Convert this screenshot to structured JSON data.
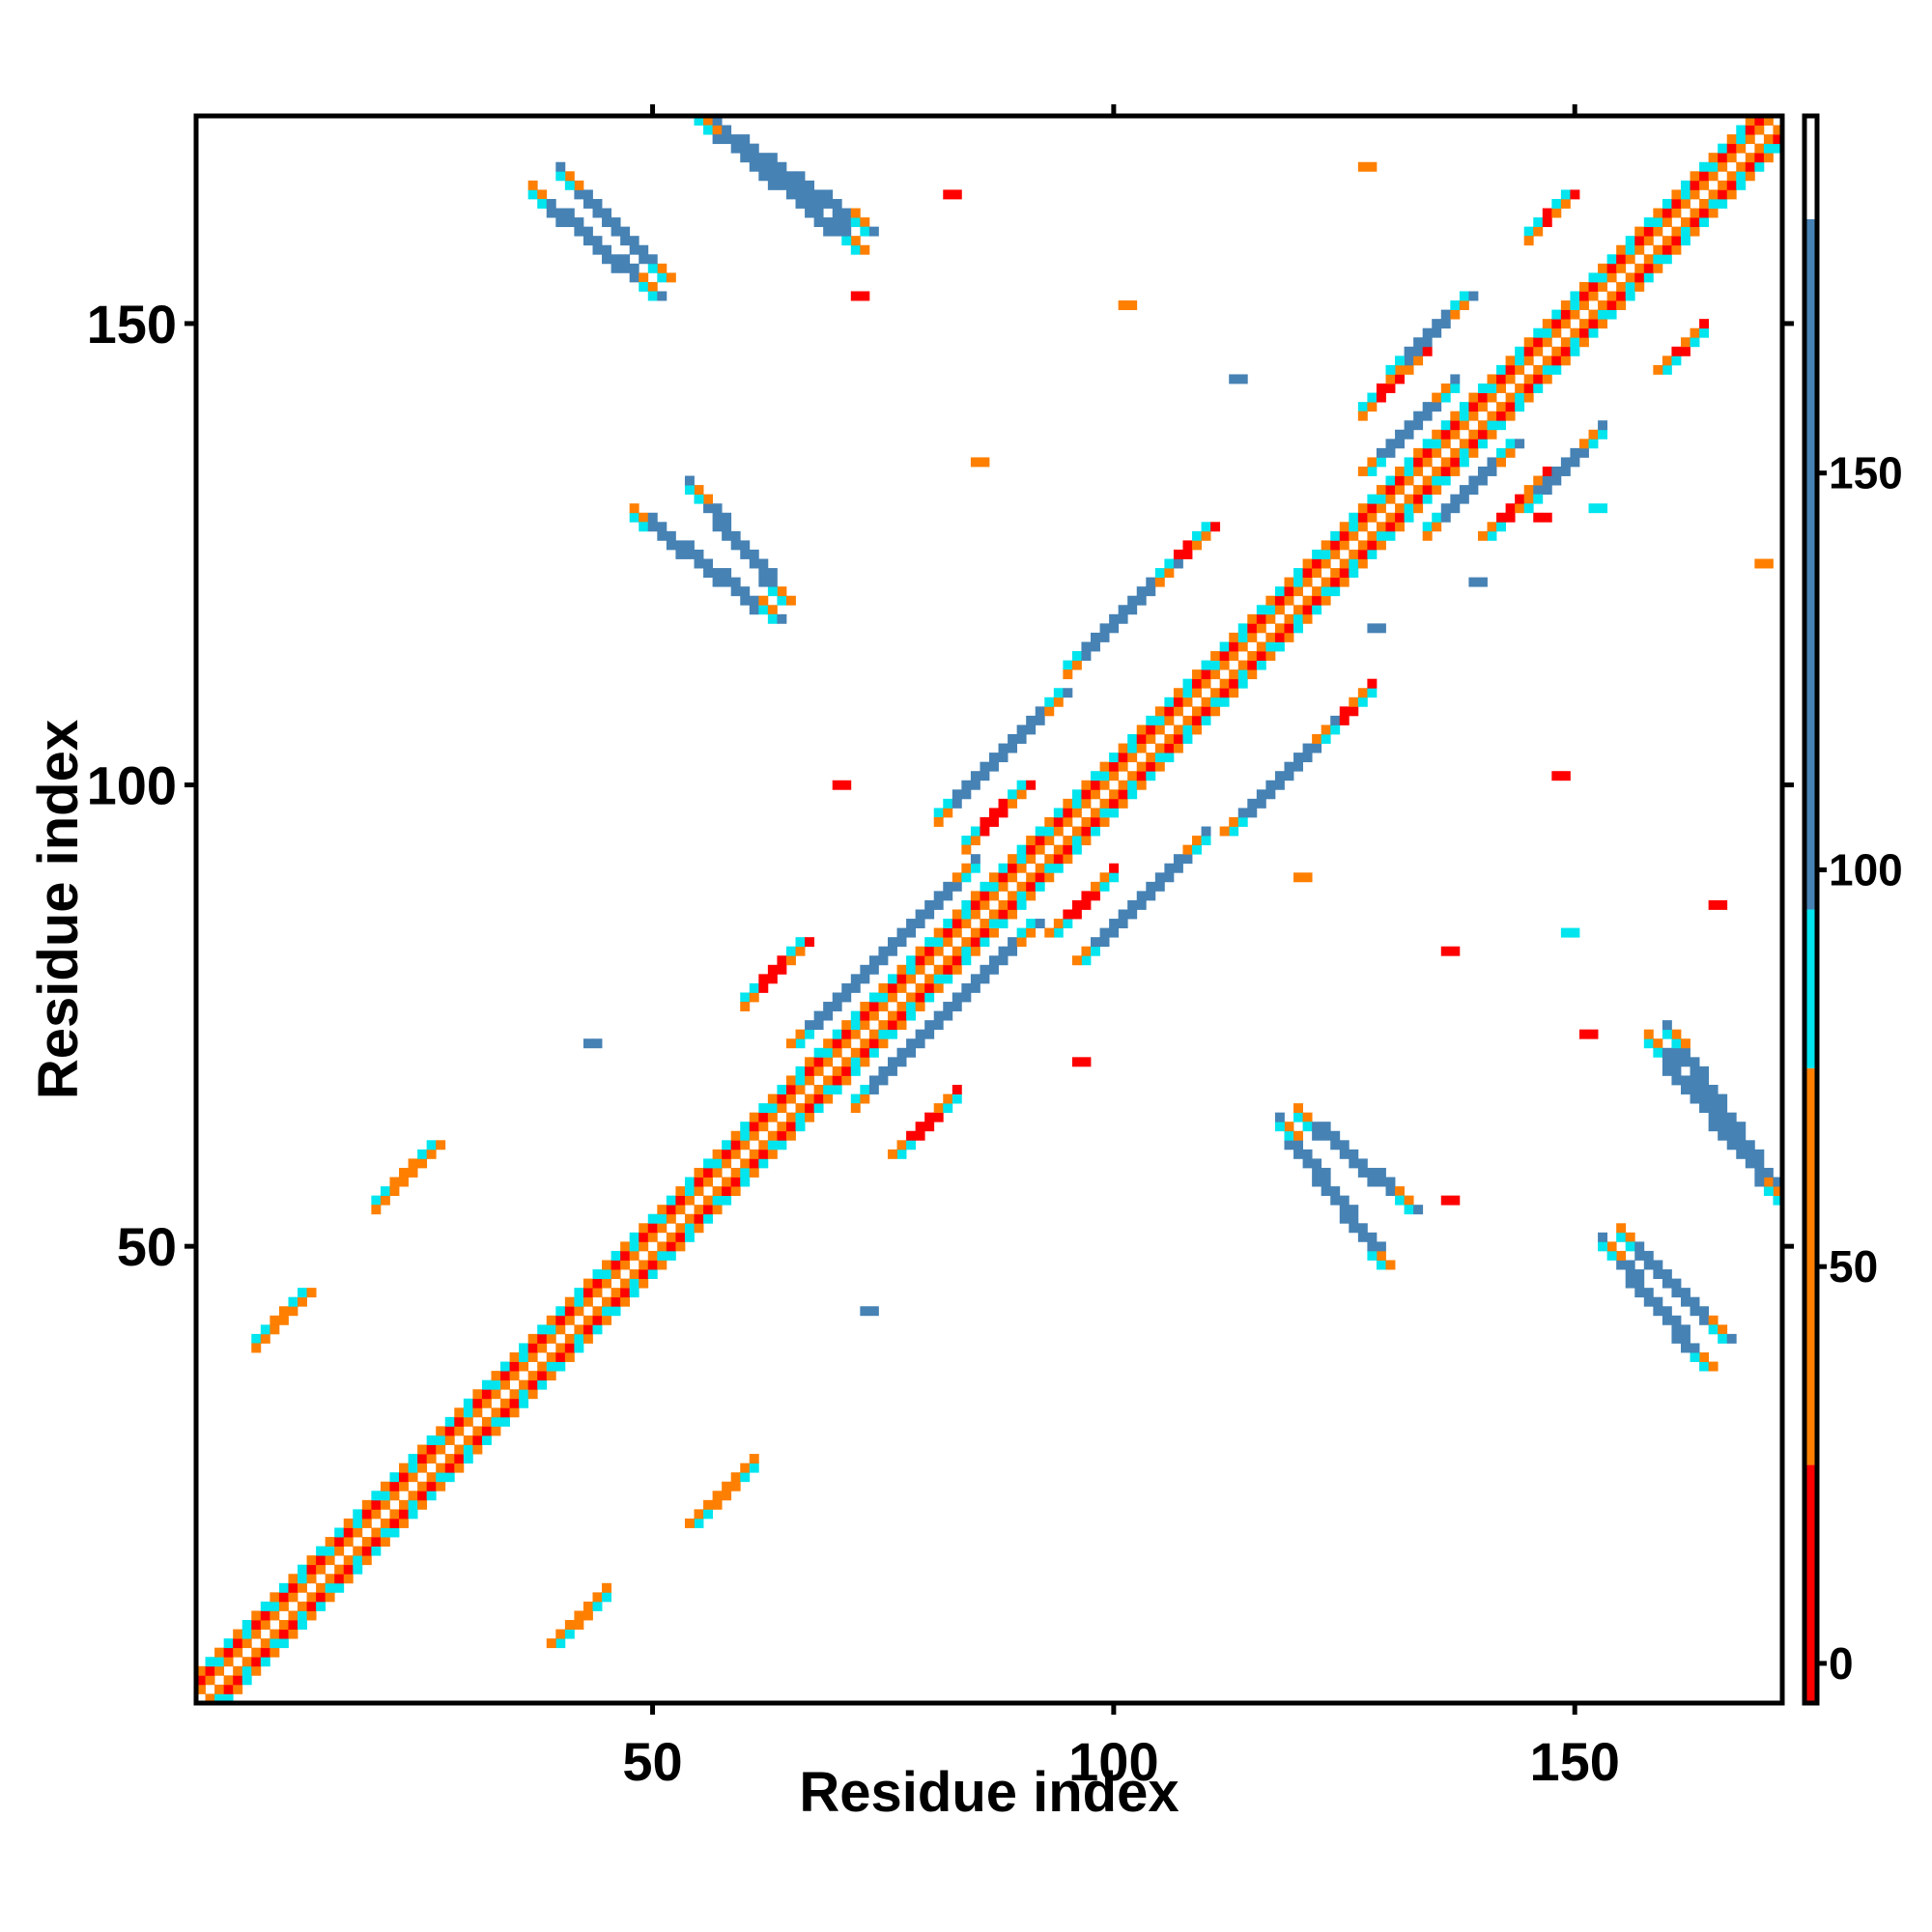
{
  "chart_data": {
    "type": "heatmap",
    "title": "",
    "xlabel": "Residue index",
    "ylabel": "Residue index",
    "xlim": [
      1,
      172
    ],
    "ylim": [
      1,
      172
    ],
    "x_ticks": [
      50,
      100,
      150
    ],
    "y_ticks": [
      50,
      100,
      150
    ],
    "x_tick_labels": [
      "50",
      "100",
      "150"
    ],
    "y_tick_labels": [
      "50",
      "100",
      "150"
    ],
    "grid": false,
    "colorbar": {
      "ticks": [
        0,
        50,
        100,
        150
      ],
      "tick_labels": [
        "0",
        "50",
        "100",
        "150"
      ],
      "range": [
        -5,
        195
      ],
      "bands": [
        {
          "from": -5,
          "to": 25,
          "color": "#ff0000"
        },
        {
          "from": 25,
          "to": 75,
          "color": "#ff7f00"
        },
        {
          "from": 75,
          "to": 95,
          "color": "#00e5ee"
        },
        {
          "from": 95,
          "to": 182,
          "color": "#4682b4"
        },
        {
          "from": 182,
          "to": 195,
          "color": "#ffffff"
        }
      ]
    },
    "features": [
      {
        "kind": "diagonal",
        "from": 1,
        "to": 172,
        "value": 40
      },
      {
        "kind": "band",
        "from": [
          7,
          12
        ],
        "to": [
          40,
          45
        ],
        "value": 40
      },
      {
        "kind": "band",
        "from": [
          20,
          26
        ],
        "to": [
          55,
          61
        ],
        "value": 40
      },
      {
        "kind": "band",
        "from": [
          60,
          66
        ],
        "to": [
          77,
          83
        ],
        "value": 15
      },
      {
        "kind": "band",
        "from": [
          84,
          90
        ],
        "to": [
          94,
          100
        ],
        "value": 15
      },
      {
        "kind": "band",
        "from": [
          104,
          110
        ],
        "to": [
          122,
          128
        ],
        "value": 15
      },
      {
        "kind": "band",
        "from": [
          127,
          133
        ],
        "to": [
          141,
          147
        ],
        "value": 15
      },
      {
        "kind": "band",
        "from": [
          145,
          149
        ],
        "to": [
          160,
          164
        ],
        "value": 15
      },
      {
        "kind": "band",
        "from": [
          72,
          91
        ],
        "to": [
          66,
          85
        ],
        "value": 120
      },
      {
        "kind": "band",
        "from": [
          81,
          94
        ],
        "to": [
          97,
          110
        ],
        "value": 120
      },
      {
        "kind": "band",
        "from": [
          95,
          106
        ],
        "to": [
          113,
          124
        ],
        "value": 120
      },
      {
        "kind": "band",
        "from": [
          130,
          138
        ],
        "to": [
          145,
          153
        ],
        "value": 120
      },
      {
        "kind": "band",
        "from": [
          134,
          143
        ],
        "to": [
          128,
          137
        ],
        "value": 120
      },
      {
        "kind": "band",
        "from": [
          55,
          73
        ],
        "to": [
          172,
          160
        ],
        "value": 120
      },
      {
        "kind": "band",
        "from": [
          37,
          50
        ],
        "to": [
          164,
          153
        ],
        "value": 120
      },
      {
        "kind": "band",
        "from": [
          48,
          63
        ],
        "to": [
          129,
          118
        ],
        "value": 120
      },
      {
        "kind": "band",
        "from": [
          120,
          132
        ],
        "to": [
          64,
          54
        ],
        "value": 120
      },
      {
        "kind": "band",
        "from": [
          158,
          172
        ],
        "to": [
          72,
          55
        ],
        "value": 120
      },
      {
        "kind": "band",
        "from": [
          155,
          166
        ],
        "to": [
          51,
          40
        ],
        "value": 120
      },
      {
        "kind": "dot",
        "at": [
          72,
          153
        ],
        "value": 10
      },
      {
        "kind": "dot",
        "at": [
          85,
          135
        ],
        "value": 40
      },
      {
        "kind": "dot",
        "at": [
          113,
          144
        ],
        "value": 120
      },
      {
        "kind": "dot",
        "at": [
          139,
          122
        ],
        "value": 120
      },
      {
        "kind": "dot",
        "at": [
          152,
          130
        ],
        "value": 85
      },
      {
        "kind": "dot",
        "at": [
          146,
          129
        ],
        "value": 15
      },
      {
        "kind": "dot",
        "at": [
          128,
          117
        ],
        "value": 120
      },
      {
        "kind": "dot",
        "at": [
          43,
          72
        ],
        "value": 120
      },
      {
        "kind": "dot",
        "at": [
          73,
          43
        ],
        "value": 120
      },
      {
        "kind": "dot",
        "at": [
          136,
          82
        ],
        "value": 15
      },
      {
        "kind": "dot",
        "at": [
          151,
          73
        ],
        "value": 10
      },
      {
        "kind": "dot",
        "at": [
          149,
          84
        ],
        "value": 85
      },
      {
        "kind": "dot",
        "at": [
          120,
          90
        ],
        "value": 40
      },
      {
        "kind": "dot",
        "at": [
          70,
          100
        ],
        "value": 15
      },
      {
        "kind": "dot",
        "at": [
          148,
          101
        ],
        "value": 10
      },
      {
        "kind": "dot",
        "at": [
          165,
          87
        ],
        "value": 15
      },
      {
        "kind": "dot",
        "at": [
          170,
          124
        ],
        "value": 40
      },
      {
        "kind": "dot",
        "at": [
          127,
          167
        ],
        "value": 40
      },
      {
        "kind": "dot",
        "at": [
          82,
          164
        ],
        "value": 15
      },
      {
        "kind": "dot",
        "at": [
          101,
          152
        ],
        "value": 40
      },
      {
        "kind": "dot",
        "at": [
          96,
          70
        ],
        "value": 15
      },
      {
        "kind": "dot",
        "at": [
          136,
          55
        ],
        "value": 15
      }
    ]
  }
}
